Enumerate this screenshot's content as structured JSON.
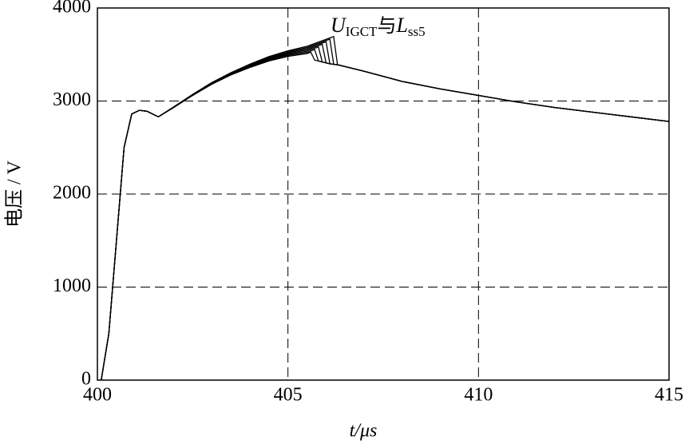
{
  "chart_data": {
    "type": "line",
    "xlabel": "t/μs",
    "ylabel": "电压 / V",
    "annotation": [
      "U",
      "IGCT",
      "与",
      "L",
      "ss5"
    ],
    "xlim": [
      400,
      415
    ],
    "xticks": [
      400,
      405,
      410,
      415
    ],
    "ylim": [
      0,
      4000
    ],
    "yticks": [
      0,
      1000,
      2000,
      3000,
      4000
    ],
    "grid": true,
    "x": [
      400.1,
      400.3,
      400.5,
      400.7,
      400.9,
      401.1,
      401.3,
      401.6,
      402,
      402.5,
      403,
      403.5,
      404,
      404.5,
      405,
      405.5,
      405.6,
      405.7,
      405.8,
      405.9,
      406,
      406.1,
      406.2,
      406.3,
      406.5,
      407,
      408,
      409,
      410,
      411,
      412,
      413,
      414,
      415
    ],
    "series": [
      {
        "color": "#000000",
        "values": [
          0,
          500,
          1500,
          2500,
          2860,
          2900,
          2890,
          2830,
          2930,
          3060,
          3180,
          3280,
          3360,
          3430,
          3480,
          3510,
          3525,
          3440,
          3430,
          3420,
          3410,
          3400,
          3395,
          3390,
          3370,
          3320,
          3210,
          3130,
          3060,
          2990,
          2930,
          2880,
          2830,
          2780
        ]
      },
      {
        "color": "#000000",
        "values": [
          0,
          500,
          1500,
          2500,
          2860,
          2900,
          2890,
          2830,
          2931,
          3062,
          3183,
          3284,
          3366,
          3438,
          3490,
          3523,
          3538,
          3553,
          3430,
          3420,
          3410,
          3400,
          3395,
          3390,
          3370,
          3320,
          3210,
          3130,
          3060,
          2990,
          2930,
          2880,
          2830,
          2780
        ]
      },
      {
        "color": "#000000",
        "values": [
          0,
          500,
          1500,
          2500,
          2860,
          2900,
          2890,
          2830,
          2932,
          3064,
          3186,
          3288,
          3372,
          3446,
          3500,
          3536,
          3551,
          3566,
          3581,
          3420,
          3410,
          3400,
          3395,
          3390,
          3370,
          3320,
          3210,
          3130,
          3060,
          2990,
          2930,
          2880,
          2830,
          2780
        ]
      },
      {
        "color": "#000000",
        "values": [
          0,
          500,
          1500,
          2500,
          2860,
          2900,
          2890,
          2830,
          2933,
          3066,
          3189,
          3292,
          3378,
          3454,
          3510,
          3549,
          3564,
          3579,
          3594,
          3609,
          3410,
          3400,
          3395,
          3390,
          3370,
          3320,
          3210,
          3130,
          3060,
          2990,
          2930,
          2880,
          2830,
          2780
        ]
      },
      {
        "color": "#000000",
        "values": [
          0,
          500,
          1500,
          2500,
          2860,
          2900,
          2890,
          2830,
          2934,
          3068,
          3192,
          3296,
          3384,
          3462,
          3520,
          3562,
          3577,
          3592,
          3607,
          3622,
          3637,
          3400,
          3395,
          3390,
          3370,
          3320,
          3210,
          3130,
          3060,
          2990,
          2930,
          2880,
          2830,
          2780
        ]
      },
      {
        "color": "#000000",
        "values": [
          0,
          500,
          1500,
          2500,
          2860,
          2900,
          2890,
          2830,
          2935,
          3070,
          3195,
          3300,
          3390,
          3470,
          3530,
          3575,
          3590,
          3605,
          3620,
          3635,
          3650,
          3665,
          3395,
          3390,
          3370,
          3320,
          3210,
          3130,
          3060,
          2990,
          2930,
          2880,
          2830,
          2780
        ]
      },
      {
        "color": "#000000",
        "values": [
          0,
          500,
          1500,
          2500,
          2860,
          2900,
          2890,
          2830,
          2936,
          3072,
          3198,
          3304,
          3396,
          3478,
          3540,
          3588,
          3603,
          3618,
          3633,
          3648,
          3663,
          3678,
          3693,
          3390,
          3370,
          3320,
          3210,
          3130,
          3060,
          2990,
          2930,
          2880,
          2830,
          2780
        ]
      }
    ]
  }
}
